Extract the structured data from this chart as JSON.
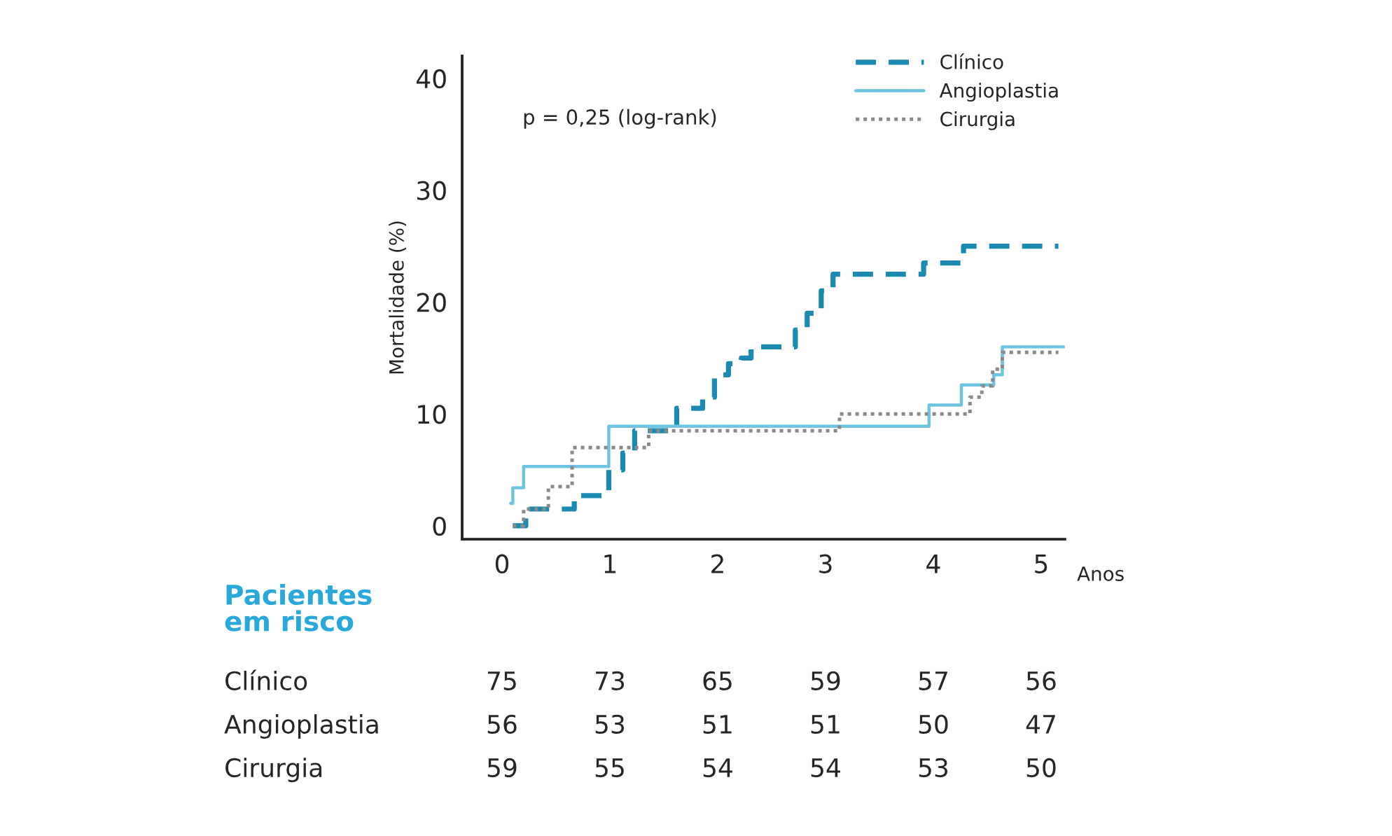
{
  "chart_data": {
    "type": "step",
    "ylabel": "Mortalidade (%)",
    "xlabel": "Anos",
    "xlim": [
      -0.37,
      5.22
    ],
    "xticks": [
      0,
      1,
      2,
      3,
      4,
      5
    ],
    "ylim": [
      -1.2,
      42
    ],
    "yticks": [
      0,
      10,
      20,
      30,
      40
    ],
    "grid": false,
    "legend": "top right",
    "series": [
      {
        "name": "Clínico",
        "color": "#1a8ab0",
        "line_style": "dashed",
        "x": [
          0.1,
          0.22,
          0.67,
          0.99,
          1.12,
          1.23,
          1.62,
          1.86,
          1.97,
          2.1,
          2.22,
          2.31,
          2.72,
          2.83,
          2.96,
          3.07,
          3.91,
          4.28,
          5.16
        ],
        "values": [
          0,
          1.5,
          2.7,
          5,
          6.5,
          8.5,
          10.5,
          11.5,
          13.5,
          14.5,
          15,
          16,
          17.5,
          19,
          21,
          22.5,
          23.5,
          25,
          25
        ]
      },
      {
        "name": "Angioplastia",
        "color": "#6cc4e0",
        "line_style": "solid",
        "x": [
          0.08,
          0.1,
          0.2,
          0.99,
          3.96,
          4.26,
          4.56,
          4.64,
          5.21
        ],
        "values": [
          2,
          3.4,
          5.3,
          8.9,
          10.8,
          12.6,
          13.5,
          16,
          16
        ]
      },
      {
        "name": "Cirurgia",
        "color": "#8a8a8a",
        "line_style": "dotted",
        "x": [
          0.1,
          0.2,
          0.43,
          0.65,
          1.36,
          3.13,
          4.34,
          4.45,
          4.55,
          4.64,
          5.16
        ],
        "values": [
          0,
          1.5,
          3.5,
          7,
          8.5,
          10,
          11.5,
          12.5,
          14,
          15.5,
          15.5
        ]
      }
    ],
    "annotations": [
      "p = 0,25 (log-rank)",
      "Pacientes\nem risco",
      "Clínico\t75\t73\t65\t59\t57\t56",
      "Angioplastia\t56\t53\t51\t51\t50\t47",
      "Cirurgia\t59\t55\t54\t54\t53\t50"
    ]
  }
}
